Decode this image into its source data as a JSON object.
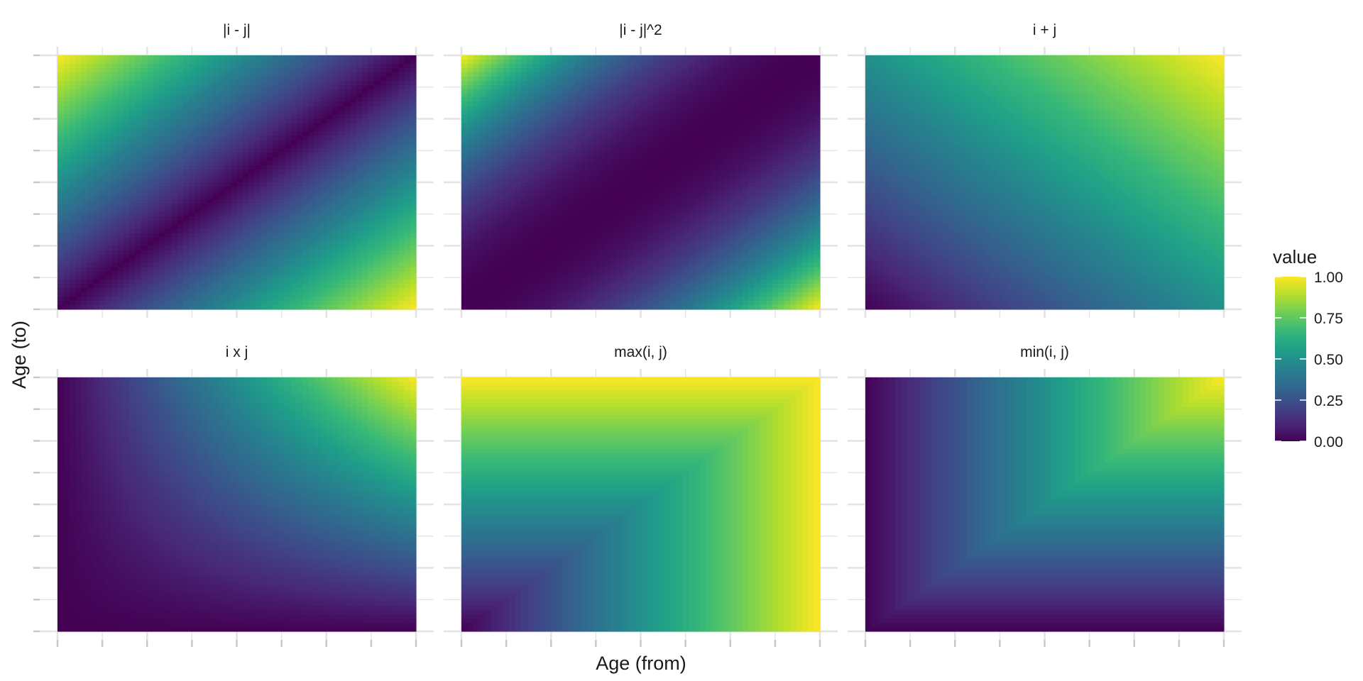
{
  "chart_data": {
    "type": "heatmap",
    "xlabel": "Age (from)",
    "ylabel": "Age (to)",
    "colorscale": "viridis",
    "panels": [
      {
        "title": "|i - j|",
        "formula": "absdiff"
      },
      {
        "title": "|i - j|^2",
        "formula": "sqdiff"
      },
      {
        "title": "i + j",
        "formula": "sum"
      },
      {
        "title": "i x j",
        "formula": "product"
      },
      {
        "title": "max(i, j)",
        "formula": "max"
      },
      {
        "title": "min(i, j)",
        "formula": "min"
      }
    ],
    "legend": {
      "title": "value",
      "position": "right",
      "min": 0,
      "max": 1,
      "ticks": [
        "1.00",
        "0.75",
        "0.50",
        "0.25",
        "0.00"
      ]
    },
    "grid": true
  }
}
